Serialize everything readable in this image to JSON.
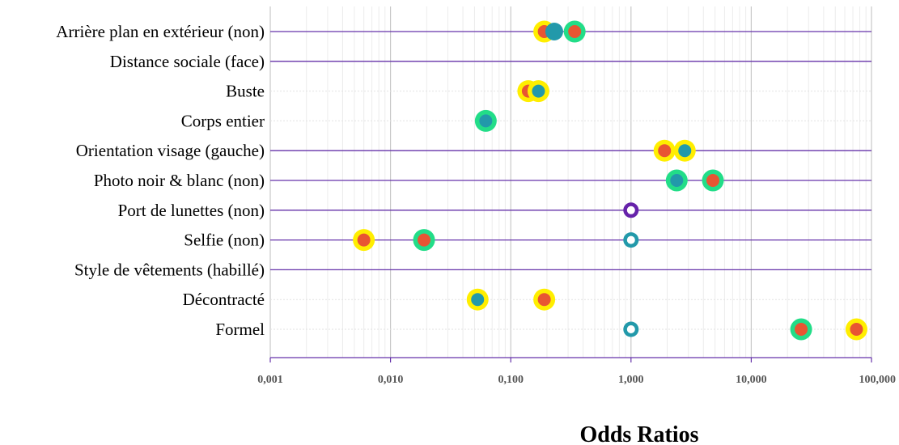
{
  "chart_data": {
    "type": "scatter",
    "x_scale": "log",
    "xlim": [
      0.001,
      100
    ],
    "xlabel": "Odds Ratios",
    "x_tick_values": [
      0.001,
      0.01,
      0.1,
      1,
      10,
      100
    ],
    "x_tick_labels": [
      "0,001",
      "0,010",
      "0,100",
      "1,000",
      "10,000",
      "100,000"
    ],
    "grid": true,
    "categories": [
      {
        "label": "Arrière plan en extérieur (non)",
        "header": true
      },
      {
        "label": "Distance sociale (face)",
        "header": true
      },
      {
        "label": "Buste",
        "header": false
      },
      {
        "label": "Corps entier",
        "header": false
      },
      {
        "label": "Orientation visage (gauche)",
        "header": true
      },
      {
        "label": "Photo noir & blanc (non)",
        "header": true
      },
      {
        "label": "Port de lunettes (non)",
        "header": true
      },
      {
        "label": "Selfie (non)",
        "header": true
      },
      {
        "label": "Style de vêtements (habillé)",
        "header": true
      },
      {
        "label": "Décontracté",
        "header": false
      },
      {
        "label": "Formel",
        "header": false
      }
    ],
    "points": [
      {
        "row": 0,
        "x": 0.19,
        "ring": "#ffee00",
        "fill": "#e85533"
      },
      {
        "row": 0,
        "x": 0.34,
        "ring": "#22dd88",
        "fill": "#e85533"
      },
      {
        "row": 0,
        "x": 0.23,
        "ring": "#2299aa",
        "fill": "#2299aa"
      },
      {
        "row": 2,
        "x": 0.14,
        "ring": "#ffee00",
        "fill": "#e85533"
      },
      {
        "row": 2,
        "x": 0.17,
        "ring": "#ffee00",
        "fill": "#2299aa"
      },
      {
        "row": 3,
        "x": 0.062,
        "ring": "#22dd88",
        "fill": "#2299aa"
      },
      {
        "row": 4,
        "x": 1.9,
        "ring": "#ffee00",
        "fill": "#e85533"
      },
      {
        "row": 4,
        "x": 2.8,
        "ring": "#ffee00",
        "fill": "#2299aa"
      },
      {
        "row": 5,
        "x": 2.4,
        "ring": "#22dd88",
        "fill": "#2299aa"
      },
      {
        "row": 5,
        "x": 4.8,
        "ring": "#22dd88",
        "fill": "#e85533"
      },
      {
        "row": 6,
        "x": 1.0,
        "ring": "#6622aa",
        "fill": "#ffffff"
      },
      {
        "row": 7,
        "x": 0.006,
        "ring": "#ffee00",
        "fill": "#e85533"
      },
      {
        "row": 7,
        "x": 0.019,
        "ring": "#22dd88",
        "fill": "#e85533"
      },
      {
        "row": 7,
        "x": 1.0,
        "ring": "#2299aa",
        "fill": "#ffffff"
      },
      {
        "row": 9,
        "x": 0.053,
        "ring": "#ffee00",
        "fill": "#2299aa"
      },
      {
        "row": 9,
        "x": 0.19,
        "ring": "#ffee00",
        "fill": "#e85533"
      },
      {
        "row": 10,
        "x": 1.0,
        "ring": "#2299aa",
        "fill": "#ffffff"
      },
      {
        "row": 10,
        "x": 26,
        "ring": "#22dd88",
        "fill": "#e85533"
      },
      {
        "row": 10,
        "x": 75,
        "ring": "#ffee00",
        "fill": "#e85533"
      }
    ],
    "colors": {
      "row_line": "#6633aa",
      "grid_major": "#c8c8c8",
      "grid_minor": "#ececec",
      "axis": "#6633aa"
    }
  }
}
